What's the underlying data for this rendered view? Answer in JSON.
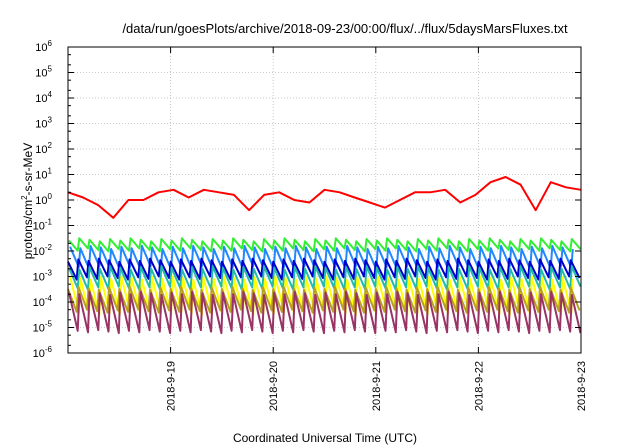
{
  "chart_data": {
    "type": "line",
    "title": "/data/run/goesPlots/archive/2018-09-23/00:00/flux/../flux/5daysMarsFluxes.txt",
    "xlabel": "Coordinated Universal Time (UTC)",
    "ylabel": {
      "base": "protons/cm",
      "sup": "2",
      "rest": "-s-sr-MeV"
    },
    "x_range": [
      "2018-09-18 00:00",
      "2018-09-23 00:00"
    ],
    "x_ticks": [
      "2018-9-19",
      "2018-9-20",
      "2018-9-21",
      "2018-9-22",
      "2018-9-23"
    ],
    "y_scale": "log",
    "y_exp_range": [
      -6,
      6
    ],
    "y_ticks": [
      {
        "base": "10",
        "exp": "-6"
      },
      {
        "base": "10",
        "exp": "-5"
      },
      {
        "base": "10",
        "exp": "-4"
      },
      {
        "base": "10",
        "exp": "-3"
      },
      {
        "base": "10",
        "exp": "-2"
      },
      {
        "base": "10",
        "exp": "-1"
      },
      {
        "base": "10",
        "exp": "0"
      },
      {
        "base": "10",
        "exp": "1"
      },
      {
        "base": "10",
        "exp": "2"
      },
      {
        "base": "10",
        "exp": "3"
      },
      {
        "base": "10",
        "exp": "4"
      },
      {
        "base": "10",
        "exp": "5"
      },
      {
        "base": "10",
        "exp": "6"
      }
    ],
    "grid": true,
    "series": [
      {
        "color": "#ff0000",
        "values_log10": [
          0.3,
          0.1,
          -0.2,
          -0.7,
          0.0,
          0.0,
          0.3,
          0.4,
          0.1,
          0.4,
          0.3,
          0.2,
          -0.4,
          0.2,
          0.3,
          0.0,
          -0.1,
          0.4,
          0.3,
          0.1,
          -0.1,
          -0.3,
          0.0,
          0.3,
          0.3,
          0.4,
          -0.1,
          0.2,
          0.7,
          0.9,
          0.6,
          -0.4,
          0.7,
          0.5,
          0.4
        ]
      },
      {
        "color": "#33ee33",
        "sawtooth": {
          "peak": -1.5,
          "trough": -1.9
        }
      },
      {
        "color": "#2288ff",
        "sawtooth": {
          "peak": -1.8,
          "trough": -2.6
        }
      },
      {
        "color": "#0000cc",
        "sawtooth": {
          "peak": -2.3,
          "trough": -3.0
        }
      },
      {
        "color": "#22bbaa",
        "sawtooth": {
          "peak": -2.6,
          "trough": -3.4
        }
      },
      {
        "color": "#ffff00",
        "sawtooth": {
          "peak": -3.0,
          "trough": -4.4
        }
      },
      {
        "color": "#b8a020",
        "sawtooth": {
          "peak": -3.4,
          "trough": -4.3
        }
      },
      {
        "color": "#993366",
        "sawtooth": {
          "peak": -3.6,
          "trough": -5.1
        }
      }
    ],
    "colors": {
      "axis": "#000000",
      "grid": "#bbbbbb",
      "background": "#ffffff"
    }
  }
}
